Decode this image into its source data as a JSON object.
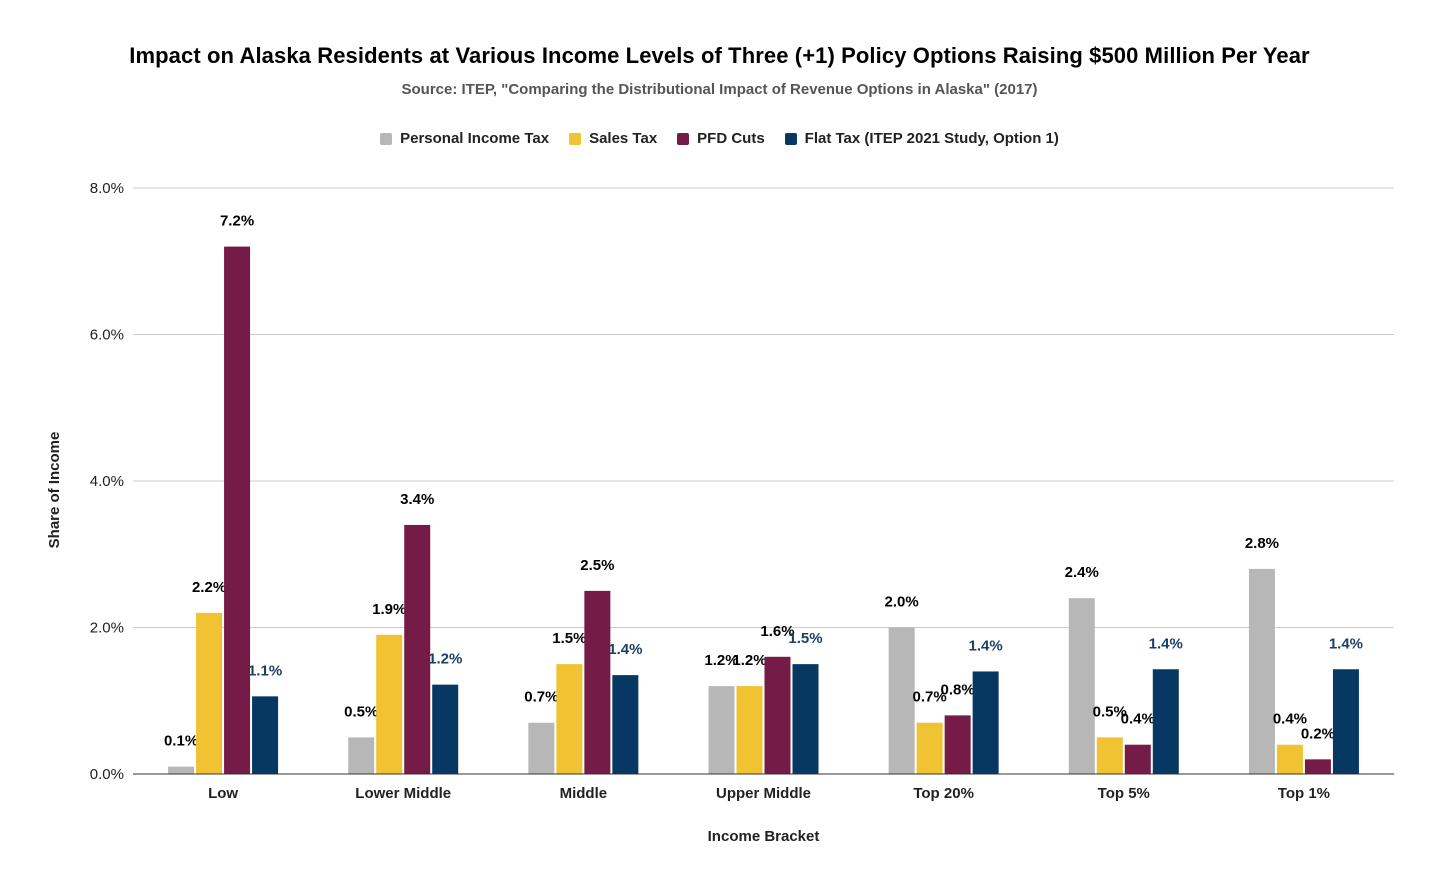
{
  "chart_data": {
    "type": "bar",
    "title": "Impact on Alaska Residents at Various Income Levels of Three (+1) Policy Options Raising $500 Million Per Year",
    "subtitle": "Source: ITEP, \"Comparing the Distributional Impact of Revenue Options in Alaska\" (2017)",
    "xlabel": "Income Bracket",
    "ylabel": "Share of Income",
    "ylim": [
      0,
      8
    ],
    "yticks": [
      "0.0%",
      "2.0%",
      "4.0%",
      "6.0%",
      "8.0%"
    ],
    "grid": true,
    "legend_position": "top",
    "categories": [
      "Low",
      "Lower Middle",
      "Middle",
      "Upper Middle",
      "Top 20%",
      "Top 5%",
      "Top 1%"
    ],
    "series": [
      {
        "name": "Personal Income Tax",
        "color": "#b7b7b7",
        "label_color": "#000000",
        "values": [
          0.1,
          0.5,
          0.7,
          1.2,
          2.0,
          2.4,
          2.8
        ],
        "labels": [
          "0.1%",
          "0.5%",
          "0.7%",
          "1.2%",
          "2.0%",
          "2.4%",
          "2.8%"
        ]
      },
      {
        "name": "Sales Tax",
        "color": "#f1c232",
        "label_color": "#000000",
        "values": [
          2.2,
          1.9,
          1.5,
          1.2,
          0.7,
          0.5,
          0.4
        ],
        "labels": [
          "2.2%",
          "1.9%",
          "1.5%",
          "1.2%",
          "0.7%",
          "0.5%",
          "0.4%"
        ]
      },
      {
        "name": "PFD Cuts",
        "color": "#741b47",
        "label_color": "#000000",
        "values": [
          7.2,
          3.4,
          2.5,
          1.6,
          0.8,
          0.4,
          0.2
        ],
        "labels": [
          "7.2%",
          "3.4%",
          "2.5%",
          "1.6%",
          "0.8%",
          "0.4%",
          "0.2%"
        ]
      },
      {
        "name": "Flat Tax (ITEP 2021 Study, Option 1)",
        "color": "#073763",
        "label_color": "#1c3f66",
        "values": [
          1.06,
          1.22,
          1.35,
          1.5,
          1.4,
          1.43,
          1.43
        ],
        "labels": [
          "1.1%",
          "1.2%",
          "1.4%",
          "1.5%",
          "1.4%",
          "1.4%",
          "1.4%"
        ]
      }
    ]
  }
}
